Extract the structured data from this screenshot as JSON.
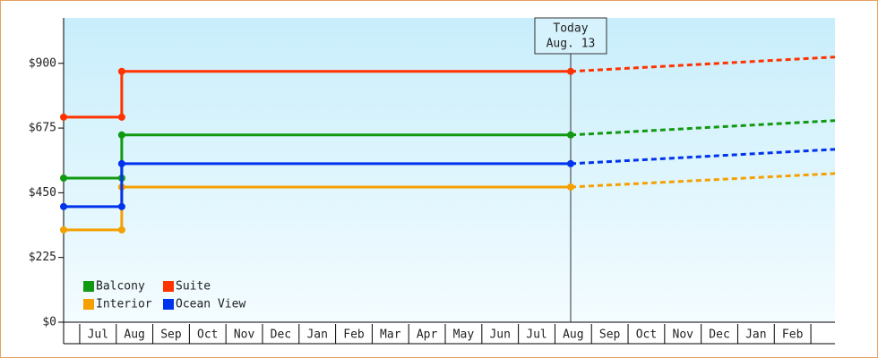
{
  "chart_data": {
    "type": "step-line",
    "categories": [
      "Jul",
      "Aug",
      "Sep",
      "Oct",
      "Nov",
      "Dec",
      "Jan",
      "Feb",
      "Mar",
      "Apr",
      "May",
      "Jun",
      "Jul",
      "Aug",
      "Sep",
      "Oct",
      "Nov",
      "Dec",
      "Jan",
      "Feb"
    ],
    "x": [
      -0.44,
      1.15,
      1.15,
      13.43
    ],
    "forecast_x": [
      13.43,
      20.66
    ],
    "xlim": [
      -0.44,
      20.66
    ],
    "ylim": [
      0,
      1058
    ],
    "yticks": [
      {
        "value": 0,
        "label": "$0"
      },
      {
        "value": 225,
        "label": "$225"
      },
      {
        "value": 450,
        "label": "$450"
      },
      {
        "value": 675,
        "label": "$675"
      },
      {
        "value": 900,
        "label": "$900"
      }
    ],
    "annotation": {
      "lines": [
        "Today",
        "Aug. 13"
      ],
      "x": 13.43
    },
    "legend": "bottom-left",
    "series": [
      {
        "name": "Balcony",
        "color": "#119911",
        "values": [
          501,
          501,
          651,
          651
        ],
        "forecast": [
          651,
          701
        ]
      },
      {
        "name": "Suite",
        "color": "#ff3300",
        "values": [
          713,
          713,
          872,
          872
        ],
        "forecast": [
          872,
          922
        ]
      },
      {
        "name": "Interior",
        "color": "#f5a000",
        "values": [
          321,
          321,
          470,
          470
        ],
        "forecast": [
          470,
          517
        ]
      },
      {
        "name": "Ocean View",
        "color": "#0033ee",
        "values": [
          402,
          402,
          551,
          551
        ],
        "forecast": [
          551,
          601
        ]
      }
    ]
  }
}
